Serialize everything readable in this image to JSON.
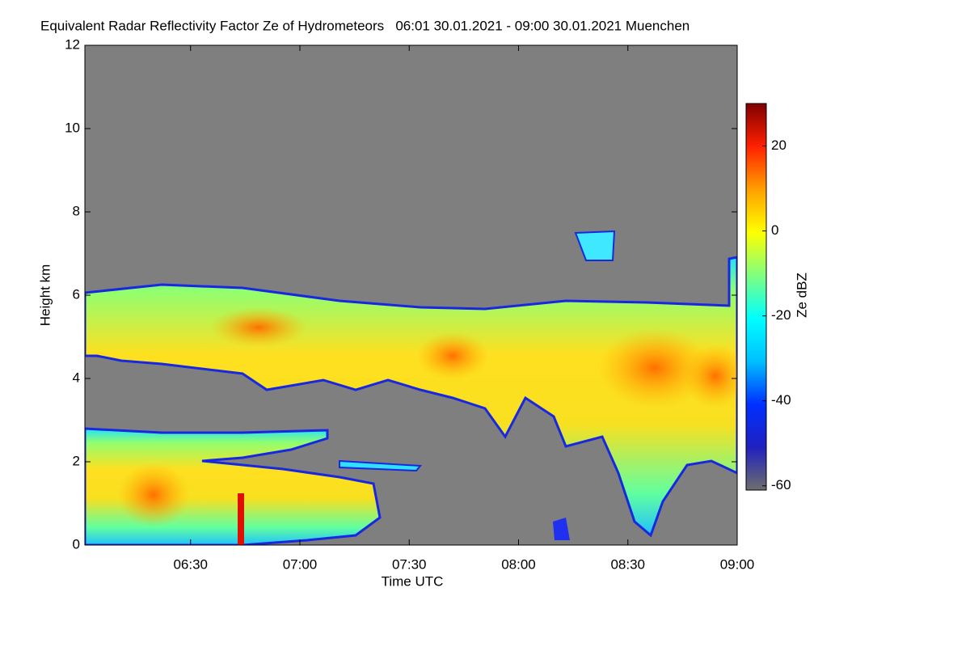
{
  "chart_data": {
    "type": "heatmap",
    "title": "Equivalent Radar Reflectivity Factor Ze of Hydrometeors   06:01 30.01.2021 - 09:00 30.01.2021 Muenchen",
    "x_label": "Time UTC",
    "y_label": "Height km",
    "colorbar_label": "Ze dBZ",
    "xlim": [
      361,
      540
    ],
    "xticks": [
      {
        "value": 390,
        "label": "06:30"
      },
      {
        "value": 420,
        "label": "07:00"
      },
      {
        "value": 450,
        "label": "07:30"
      },
      {
        "value": 480,
        "label": "08:00"
      },
      {
        "value": 510,
        "label": "08:30"
      },
      {
        "value": 540,
        "label": "09:00"
      }
    ],
    "ylim": [
      0,
      12
    ],
    "yticks": [
      0,
      2,
      4,
      6,
      8,
      10,
      12
    ],
    "zlim": [
      -61,
      30
    ],
    "zticks": [
      -60,
      -40,
      -20,
      0,
      20
    ],
    "colormap": [
      "#6e6e6e",
      "#2020c0",
      "#0030ff",
      "#00c0ff",
      "#00ffff",
      "#80ff80",
      "#ffff00",
      "#ffa000",
      "#ff2000",
      "#800000"
    ]
  }
}
